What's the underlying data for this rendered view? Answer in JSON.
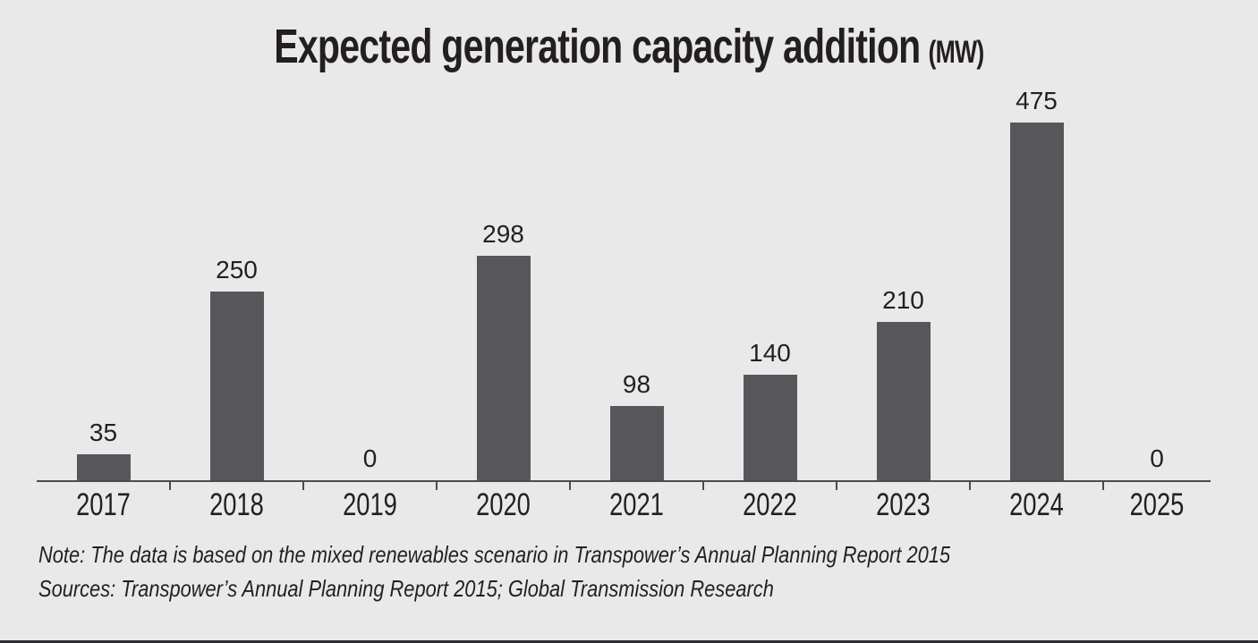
{
  "title": {
    "text": "Expected generation capacity addition",
    "unit": "(MW)"
  },
  "chart_data": {
    "type": "bar",
    "title": "Expected generation capacity addition (MW)",
    "categories": [
      "2017",
      "2018",
      "2019",
      "2020",
      "2021",
      "2022",
      "2023",
      "2024",
      "2025"
    ],
    "values": [
      35,
      250,
      0,
      298,
      98,
      140,
      210,
      475,
      0
    ],
    "xlabel": "",
    "ylabel": "",
    "ylim": [
      0,
      475
    ],
    "grid": false,
    "legend": false,
    "value_labels_shown": true,
    "bar_color": "#57565a",
    "background_color": "#eae9e9",
    "axis_color": "#4c4b4e",
    "text_color": "#231f20"
  },
  "footnotes": {
    "note": "Note: The data is based on the mixed renewables scenario in Transpower’s Annual Planning Report 2015",
    "sources": "Sources: Transpower’s Annual Planning Report 2015; Global Transmission Research"
  }
}
